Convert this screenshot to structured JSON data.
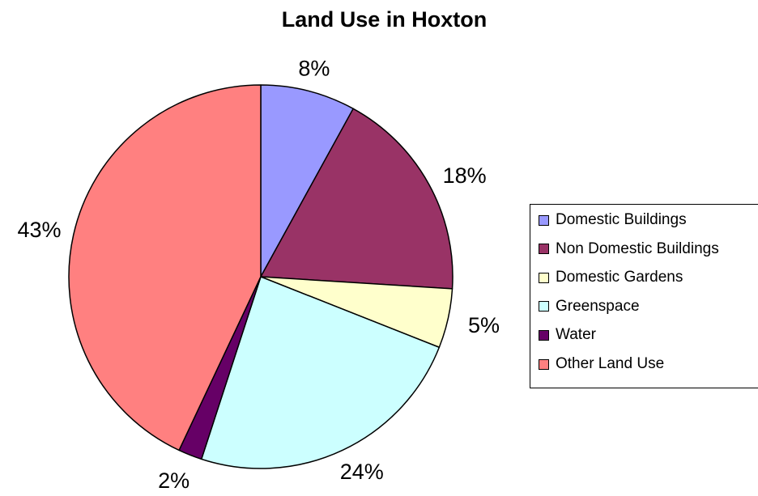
{
  "chart_data": {
    "type": "pie",
    "title": "Land Use in Hoxton",
    "slices": [
      {
        "label": "Domestic Buildings",
        "value": 8,
        "value_label": "8%",
        "color": "#9999FF"
      },
      {
        "label": "Non Domestic Buildings",
        "value": 18,
        "value_label": "18%",
        "color": "#993366"
      },
      {
        "label": "Domestic Gardens",
        "value": 5,
        "value_label": "5%",
        "color": "#FFFFCC"
      },
      {
        "label": "Greenspace",
        "value": 24,
        "value_label": "24%",
        "color": "#CCFFFF"
      },
      {
        "label": "Water",
        "value": 2,
        "value_label": "2%",
        "color": "#660066"
      },
      {
        "label": "Other Land Use",
        "value": 43,
        "value_label": "43%",
        "color": "#FF8080"
      }
    ],
    "legend_position": "right"
  }
}
